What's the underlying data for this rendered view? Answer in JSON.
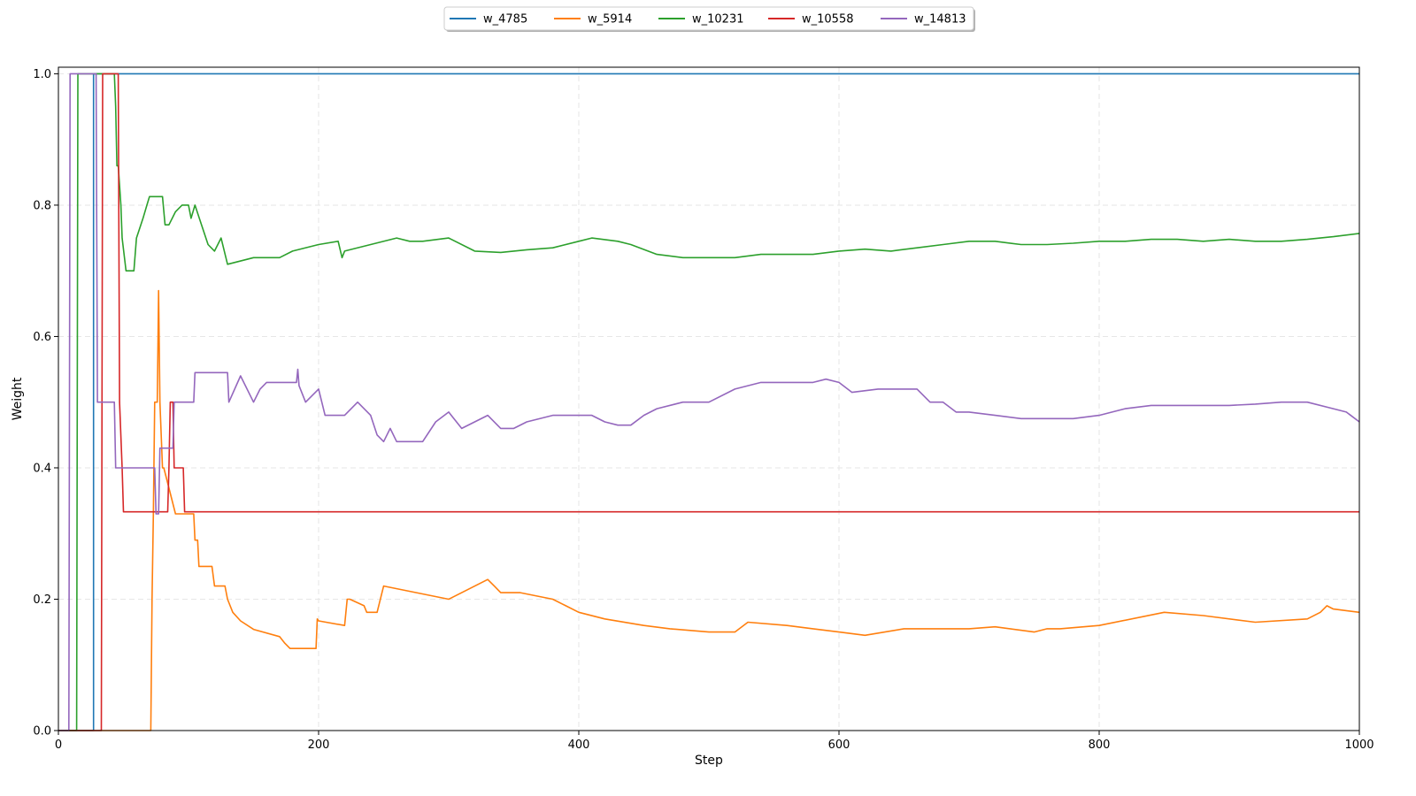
{
  "chart_data": {
    "type": "line",
    "title": "",
    "xlabel": "Step",
    "ylabel": "Weight",
    "xlim": [
      0,
      1000
    ],
    "ylim": [
      0,
      1.01
    ],
    "xticks": [
      "0",
      "200",
      "400",
      "600",
      "800",
      "1000"
    ],
    "yticks": [
      "0.0",
      "0.2",
      "0.4",
      "0.6",
      "0.8",
      "1.0"
    ],
    "grid": true,
    "legend_position": "top-center",
    "series": [
      {
        "name": "w_4785",
        "color": "#1f77b4",
        "x": [
          0,
          27,
          27,
          1000
        ],
        "y": [
          0,
          0,
          1,
          1
        ]
      },
      {
        "name": "w_5914",
        "color": "#ff7f0e",
        "x": [
          0,
          71,
          72,
          73,
          74,
          76,
          77,
          78,
          80,
          81,
          90,
          91,
          100,
          104,
          105,
          107,
          108,
          118,
          120,
          128,
          130,
          134,
          140,
          150,
          170,
          174,
          178,
          198,
          199,
          200,
          220,
          222,
          224,
          235,
          237,
          245,
          250,
          300,
          330,
          335,
          340,
          355,
          380,
          390,
          400,
          420,
          450,
          470,
          500,
          520,
          530,
          560,
          580,
          600,
          620,
          650,
          670,
          700,
          720,
          750,
          760,
          770,
          800,
          850,
          880,
          920,
          960,
          970,
          975,
          980,
          1000
        ],
        "y": [
          0,
          0,
          0.2,
          0.33,
          0.5,
          0.5,
          0.67,
          0.5,
          0.4,
          0.4,
          0.33,
          0.33,
          0.33,
          0.33,
          0.29,
          0.29,
          0.25,
          0.25,
          0.22,
          0.22,
          0.2,
          0.18,
          0.167,
          0.154,
          0.143,
          0.133,
          0.125,
          0.125,
          0.17,
          0.167,
          0.16,
          0.2,
          0.2,
          0.19,
          0.18,
          0.18,
          0.22,
          0.2,
          0.23,
          0.22,
          0.21,
          0.21,
          0.2,
          0.19,
          0.18,
          0.17,
          0.16,
          0.155,
          0.15,
          0.15,
          0.165,
          0.16,
          0.155,
          0.15,
          0.145,
          0.155,
          0.155,
          0.155,
          0.158,
          0.15,
          0.155,
          0.155,
          0.16,
          0.18,
          0.175,
          0.165,
          0.17,
          0.18,
          0.19,
          0.185,
          0.18
        ]
      },
      {
        "name": "w_10231",
        "color": "#2ca02c",
        "x": [
          0,
          14,
          15,
          43,
          44,
          45,
          46,
          48,
          49,
          52,
          58,
          60,
          65,
          68,
          70,
          80,
          82,
          85,
          90,
          95,
          100,
          102,
          105,
          110,
          115,
          120,
          125,
          130,
          150,
          170,
          180,
          200,
          215,
          218,
          220,
          240,
          260,
          270,
          280,
          300,
          320,
          340,
          360,
          380,
          400,
          410,
          430,
          440,
          460,
          480,
          500,
          520,
          540,
          560,
          580,
          600,
          620,
          640,
          660,
          680,
          700,
          720,
          740,
          760,
          780,
          800,
          820,
          840,
          860,
          880,
          900,
          920,
          940,
          960,
          980,
          1000
        ],
        "y": [
          0,
          0,
          1,
          1,
          0.95,
          0.86,
          0.86,
          0.8,
          0.75,
          0.7,
          0.7,
          0.75,
          0.78,
          0.8,
          0.813,
          0.813,
          0.77,
          0.77,
          0.79,
          0.8,
          0.8,
          0.78,
          0.8,
          0.77,
          0.74,
          0.73,
          0.75,
          0.71,
          0.72,
          0.72,
          0.73,
          0.74,
          0.745,
          0.72,
          0.73,
          0.74,
          0.75,
          0.745,
          0.745,
          0.75,
          0.73,
          0.728,
          0.732,
          0.735,
          0.745,
          0.75,
          0.745,
          0.74,
          0.725,
          0.72,
          0.72,
          0.72,
          0.725,
          0.725,
          0.725,
          0.73,
          0.733,
          0.73,
          0.735,
          0.74,
          0.745,
          0.745,
          0.74,
          0.74,
          0.742,
          0.745,
          0.745,
          0.748,
          0.748,
          0.745,
          0.748,
          0.745,
          0.745,
          0.748,
          0.752,
          0.757
        ]
      },
      {
        "name": "w_10558",
        "color": "#d62728",
        "x": [
          0,
          33,
          34,
          46,
          47,
          49,
          50,
          52,
          60,
          70,
          84,
          85,
          86,
          88,
          89,
          93,
          96,
          97,
          1000
        ],
        "y": [
          0,
          0,
          1,
          1,
          0.5,
          0.4,
          0.333,
          0.333,
          0.333,
          0.333,
          0.333,
          0.4,
          0.5,
          0.5,
          0.4,
          0.4,
          0.4,
          0.333,
          0.333
        ]
      },
      {
        "name": "w_14813",
        "color": "#9467bd",
        "x": [
          0,
          8,
          9,
          29,
          30,
          43,
          44,
          74,
          75,
          77,
          78,
          88,
          89,
          104,
          105,
          130,
          131,
          140,
          150,
          155,
          160,
          183,
          184,
          185,
          190,
          200,
          205,
          210,
          220,
          230,
          240,
          245,
          250,
          255,
          260,
          280,
          290,
          300,
          310,
          320,
          330,
          340,
          350,
          360,
          380,
          410,
          420,
          430,
          440,
          450,
          460,
          480,
          500,
          520,
          540,
          560,
          580,
          590,
          600,
          610,
          630,
          650,
          660,
          670,
          680,
          690,
          700,
          720,
          740,
          760,
          780,
          800,
          820,
          840,
          860,
          880,
          900,
          920,
          940,
          960,
          980,
          990,
          1000
        ],
        "y": [
          0,
          0,
          1,
          1,
          0.5,
          0.5,
          0.4,
          0.4,
          0.33,
          0.33,
          0.43,
          0.43,
          0.5,
          0.5,
          0.545,
          0.545,
          0.5,
          0.54,
          0.5,
          0.52,
          0.53,
          0.53,
          0.55,
          0.525,
          0.5,
          0.52,
          0.48,
          0.48,
          0.48,
          0.5,
          0.48,
          0.45,
          0.44,
          0.46,
          0.44,
          0.44,
          0.47,
          0.485,
          0.46,
          0.47,
          0.48,
          0.46,
          0.46,
          0.47,
          0.48,
          0.48,
          0.47,
          0.465,
          0.465,
          0.48,
          0.49,
          0.5,
          0.5,
          0.52,
          0.53,
          0.53,
          0.53,
          0.535,
          0.53,
          0.515,
          0.52,
          0.52,
          0.52,
          0.5,
          0.5,
          0.485,
          0.485,
          0.48,
          0.475,
          0.475,
          0.475,
          0.48,
          0.49,
          0.495,
          0.495,
          0.495,
          0.495,
          0.497,
          0.5,
          0.5,
          0.49,
          0.485,
          0.47
        ]
      }
    ]
  }
}
